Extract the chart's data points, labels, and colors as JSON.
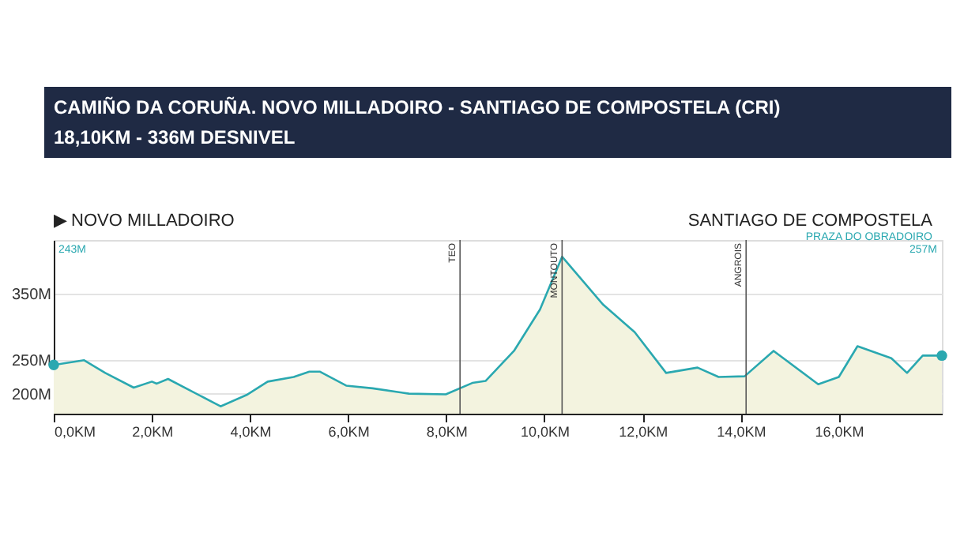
{
  "chart_data": {
    "type": "area",
    "title": "CAMIÑO DA CORUÑA. NOVO MILLADOIRO - SANTIAGO DE COMPOSTELA (CRI)",
    "subtitle": "18,10KM - 336M DESNIVEL",
    "x": [
      0,
      0.62,
      1.05,
      1.63,
      2.0,
      2.1,
      2.33,
      3.4,
      3.93,
      4.36,
      4.89,
      5.21,
      5.42,
      5.96,
      6.5,
      7.24,
      7.99,
      8.53,
      8.8,
      9.38,
      9.91,
      10.36,
      11.2,
      11.84,
      12.48,
      13.12,
      13.55,
      14.08,
      14.67,
      15.58,
      16.0,
      16.38,
      17.07,
      17.39,
      17.71,
      18.1
    ],
    "series": [
      {
        "color": "#2aa8b0",
        "values": [
          243,
          250,
          231,
          209,
          218,
          215,
          222,
          181,
          198,
          218,
          225,
          233,
          233,
          212,
          208,
          200,
          199,
          216,
          219,
          264,
          326,
          405,
          333,
          292,
          231,
          239,
          225,
          226,
          264,
          214,
          225,
          271,
          253,
          231,
          257,
          257
        ]
      }
    ],
    "xlim": [
      0,
      18.1
    ],
    "xticks": [
      {
        "value": 0,
        "label": "0,0KM"
      },
      {
        "value": 2,
        "label": "2,0KM"
      },
      {
        "value": 4,
        "label": "4,0KM"
      },
      {
        "value": 6,
        "label": "6,0KM"
      },
      {
        "value": 8,
        "label": "8,0KM"
      },
      {
        "value": 10,
        "label": "10,0KM"
      },
      {
        "value": 12,
        "label": "12,0KM"
      },
      {
        "value": 14,
        "label": "14,0KM"
      },
      {
        "value": 16,
        "label": "16,0KM"
      }
    ],
    "ylim": [
      170,
      430
    ],
    "yticks": [
      {
        "value": 200,
        "label": "200M"
      },
      {
        "value": 250,
        "label": "250M"
      },
      {
        "value": 350,
        "label": "350M"
      }
    ],
    "grid": "y",
    "ref_lines": [
      {
        "axis": "x",
        "value": 8.28,
        "label": "TEO"
      },
      {
        "axis": "x",
        "value": 10.36,
        "label": "MONTOUTO"
      },
      {
        "axis": "x",
        "value": 14.11,
        "label": "ANGROIS"
      }
    ],
    "annotations": [
      "▶ NOVO MILLADOIRO",
      "SANTIAGO DE COMPOSTELA",
      "PRAZA DO OBRADOIRO",
      "243M",
      "257M"
    ]
  }
}
